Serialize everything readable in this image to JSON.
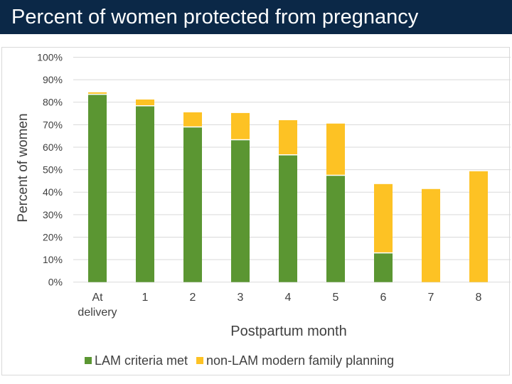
{
  "header": {
    "title": "Percent of women protected from pregnancy"
  },
  "chart_data": {
    "type": "bar",
    "stacked": true,
    "title": "",
    "xlabel": "Postpartum month",
    "ylabel": "Percent of women",
    "ylim": [
      0,
      100
    ],
    "yticks": [
      "0%",
      "10%",
      "20%",
      "30%",
      "40%",
      "50%",
      "60%",
      "70%",
      "80%",
      "90%",
      "100%"
    ],
    "grid": true,
    "legend_position": "bottom",
    "categories": [
      "At delivery",
      "1",
      "2",
      "3",
      "4",
      "5",
      "6",
      "7",
      "8"
    ],
    "series": [
      {
        "name": "LAM criteria met",
        "color": "#5b9632",
        "values": [
          83.5,
          78.4,
          69,
          63.3,
          56.6,
          47.5,
          13,
          0,
          0
        ]
      },
      {
        "name": "non-LAM modern family planning",
        "color": "#fdc224",
        "values": [
          0.9,
          2.8,
          6.5,
          11.9,
          15.4,
          23,
          30.6,
          41.4,
          49.3
        ]
      }
    ]
  }
}
